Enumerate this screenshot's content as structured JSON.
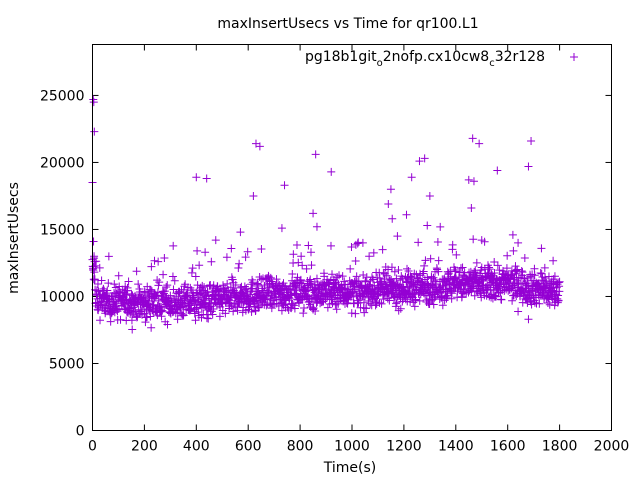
{
  "chart_data": {
    "type": "scatter",
    "title": "maxInsertUsecs vs Time for qr100.L1",
    "xlabel": "Time(s)",
    "ylabel": "maxInsertUsecs",
    "xlim": [
      0,
      2000
    ],
    "ylim": [
      0,
      28800
    ],
    "x_ticks": [
      0,
      200,
      400,
      600,
      800,
      1000,
      1200,
      1400,
      1600,
      1800,
      2000
    ],
    "y_ticks": [
      0,
      5000,
      10000,
      15000,
      20000,
      25000
    ],
    "grid": false,
    "legend": {
      "placement": "top-right",
      "entry_main": "pg18b1git",
      "entry_sub1": "o",
      "entry_mid": "2nofp.cx10cw8",
      "entry_sub2": "c",
      "entry_end": "32r128"
    },
    "series": [
      {
        "marker": "plus",
        "color": "#9400d3",
        "time_range": [
          0,
          1800
        ],
        "sample_interval": 1,
        "baseline_trend": [
          [
            0,
            9600
          ],
          [
            200,
            9500
          ],
          [
            400,
            9600
          ],
          [
            600,
            10000
          ],
          [
            800,
            10300
          ],
          [
            1000,
            10300
          ],
          [
            1200,
            10600
          ],
          [
            1400,
            10900
          ],
          [
            1600,
            11000
          ],
          [
            1800,
            10300
          ]
        ],
        "typical_spread": 900,
        "outliers": [
          {
            "x": 0,
            "y": 18500
          },
          {
            "x": 3,
            "y": 24700
          },
          {
            "x": 5,
            "y": 24500
          },
          {
            "x": 7,
            "y": 22300
          },
          {
            "x": 4,
            "y": 14100
          },
          {
            "x": 6,
            "y": 13000
          },
          {
            "x": 8,
            "y": 12600
          },
          {
            "x": 400,
            "y": 18900
          },
          {
            "x": 440,
            "y": 18800
          },
          {
            "x": 475,
            "y": 14200
          },
          {
            "x": 570,
            "y": 14800
          },
          {
            "x": 620,
            "y": 17500
          },
          {
            "x": 630,
            "y": 21400
          },
          {
            "x": 645,
            "y": 21200
          },
          {
            "x": 730,
            "y": 15100
          },
          {
            "x": 740,
            "y": 18300
          },
          {
            "x": 850,
            "y": 16200
          },
          {
            "x": 860,
            "y": 20600
          },
          {
            "x": 865,
            "y": 15200
          },
          {
            "x": 920,
            "y": 19300
          },
          {
            "x": 1140,
            "y": 16900
          },
          {
            "x": 1150,
            "y": 18000
          },
          {
            "x": 1155,
            "y": 15800
          },
          {
            "x": 1210,
            "y": 16100
          },
          {
            "x": 1230,
            "y": 18900
          },
          {
            "x": 1260,
            "y": 20100
          },
          {
            "x": 1280,
            "y": 20300
          },
          {
            "x": 1290,
            "y": 15300
          },
          {
            "x": 1300,
            "y": 17500
          },
          {
            "x": 1450,
            "y": 18700
          },
          {
            "x": 1460,
            "y": 16600
          },
          {
            "x": 1465,
            "y": 21800
          },
          {
            "x": 1470,
            "y": 18600
          },
          {
            "x": 1490,
            "y": 21400
          },
          {
            "x": 1500,
            "y": 14200
          },
          {
            "x": 1560,
            "y": 19400
          },
          {
            "x": 1680,
            "y": 19700
          },
          {
            "x": 1690,
            "y": 21600
          },
          {
            "x": 1620,
            "y": 14600
          },
          {
            "x": 1640,
            "y": 14000
          },
          {
            "x": 1680,
            "y": 8300
          }
        ]
      }
    ]
  }
}
